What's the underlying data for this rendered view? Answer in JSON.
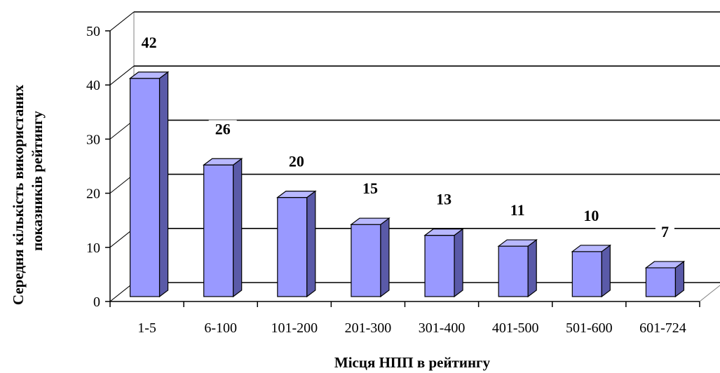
{
  "chart_data": {
    "type": "bar",
    "categories": [
      "1-5",
      "6-100",
      "101-200",
      "201-300",
      "301-400",
      "401-500",
      "501-600",
      "601-724"
    ],
    "values": [
      42,
      26,
      20,
      15,
      13,
      11,
      10,
      7
    ],
    "data_labels": [
      "42",
      "26",
      "20",
      "15",
      "13",
      "11",
      "10",
      "7"
    ],
    "xlabel": "Місця НПП в рейтингу",
    "ylabel_line1": "Середня кількість використаних",
    "ylabel_line2": "показників рейтингу",
    "ylim": [
      0,
      50
    ],
    "yticks": [
      0,
      10,
      20,
      30,
      40,
      50
    ],
    "ytick_labels": [
      "0",
      "10",
      "20",
      "30",
      "40",
      "50"
    ],
    "grid": true,
    "style": "3d",
    "colors": {
      "bar_front": "#9999ff",
      "bar_top": "#b8b8ff",
      "bar_side": "#5a5aa8",
      "bar_edge": "#000000"
    }
  }
}
